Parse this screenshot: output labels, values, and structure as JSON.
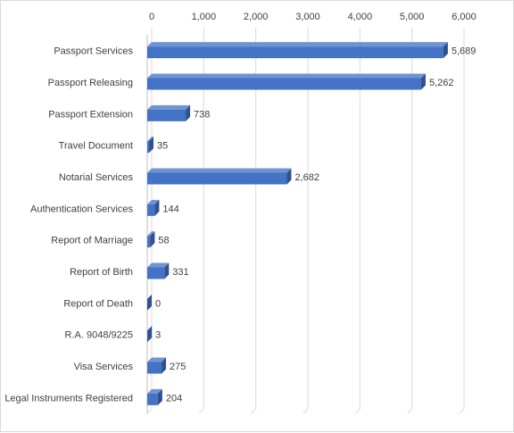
{
  "chart_data": {
    "type": "bar",
    "orientation": "horizontal",
    "style": "3d",
    "title": "",
    "xlabel": "",
    "ylabel": "",
    "xlim": [
      0,
      6000
    ],
    "x_axis_position": "top",
    "grid": true,
    "legend": "none",
    "tick_labels": [
      "0",
      "1,000",
      "2,000",
      "3,000",
      "4,000",
      "5,000",
      "6,000"
    ],
    "tick_values": [
      0,
      1000,
      2000,
      3000,
      4000,
      5000,
      6000
    ],
    "categories": [
      "Passport Services",
      "Passport Releasing",
      "Passport Extension",
      "Travel Document",
      "Notarial Services",
      "Authentication Services",
      "Report of Marriage",
      "Report of Birth",
      "Report of Death",
      "R.A. 9048/9225",
      "Visa Services",
      "Legal Instruments Registered"
    ],
    "values": [
      5689,
      5262,
      738,
      35,
      2682,
      144,
      58,
      331,
      0,
      3,
      275,
      204
    ],
    "data_labels": [
      "5,689",
      "5,262",
      "738",
      "35",
      "2,682",
      "144",
      "58",
      "331",
      "0",
      "3",
      "275",
      "204"
    ],
    "colors": {
      "bar_front": "#4472c4",
      "bar_top": "#6f94d4",
      "bar_side": "#2f528f",
      "grid": "#d9d9d9",
      "text": "#404040"
    }
  }
}
